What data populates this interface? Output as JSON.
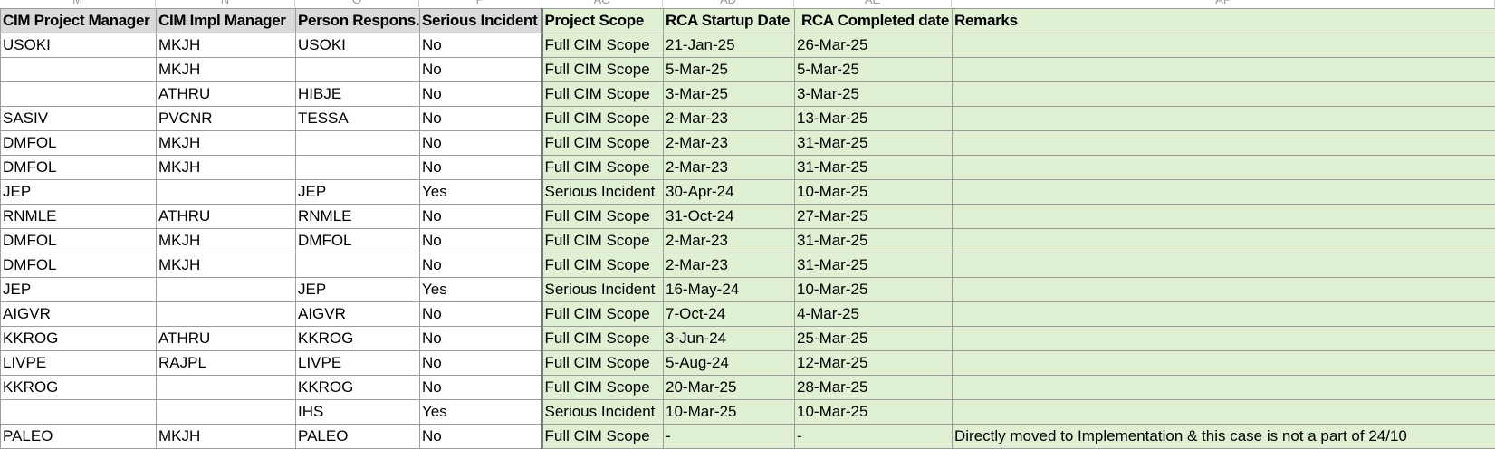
{
  "column_letters": [
    "M",
    "N",
    "O",
    "P",
    "AC",
    "AD",
    "AE",
    "AF"
  ],
  "headers": [
    "CIM Project Manager",
    "CIM Impl Manager",
    "Person Respons.",
    "Serious Incident",
    "Project Scope",
    "RCA Startup Date",
    "RCA Completed date",
    "Remarks"
  ],
  "rows": [
    [
      "USOKI",
      "MKJH",
      "USOKI",
      "No",
      "Full CIM Scope",
      "21-Jan-25",
      "26-Mar-25",
      ""
    ],
    [
      "",
      "MKJH",
      "",
      "No",
      "Full CIM Scope",
      "5-Mar-25",
      "5-Mar-25",
      ""
    ],
    [
      "",
      "ATHRU",
      "HIBJE",
      "No",
      "Full CIM Scope",
      "3-Mar-25",
      "3-Mar-25",
      ""
    ],
    [
      "SASIV",
      "PVCNR",
      "TESSA",
      "No",
      "Full CIM Scope",
      "2-Mar-23",
      "13-Mar-25",
      ""
    ],
    [
      "DMFOL",
      "MKJH",
      "",
      "No",
      "Full CIM Scope",
      "2-Mar-23",
      "31-Mar-25",
      ""
    ],
    [
      "DMFOL",
      "MKJH",
      "",
      "No",
      "Full CIM Scope",
      "2-Mar-23",
      "31-Mar-25",
      ""
    ],
    [
      "JEP",
      "",
      "JEP",
      "Yes",
      "Serious Incident",
      "30-Apr-24",
      "10-Mar-25",
      ""
    ],
    [
      "RNMLE",
      "ATHRU",
      "RNMLE",
      "No",
      "Full CIM Scope",
      "31-Oct-24",
      "27-Mar-25",
      ""
    ],
    [
      "DMFOL",
      "MKJH",
      "DMFOL",
      "No",
      "Full CIM Scope",
      "2-Mar-23",
      "31-Mar-25",
      ""
    ],
    [
      "DMFOL",
      "MKJH",
      "",
      "No",
      "Full CIM Scope",
      "2-Mar-23",
      "31-Mar-25",
      ""
    ],
    [
      "JEP",
      "",
      "JEP",
      "Yes",
      "Serious Incident",
      "16-May-24",
      "10-Mar-25",
      ""
    ],
    [
      "AIGVR",
      "",
      "AIGVR",
      "No",
      "Full CIM Scope",
      "7-Oct-24",
      "4-Mar-25",
      ""
    ],
    [
      "KKROG",
      "ATHRU",
      "KKROG",
      "No",
      "Full CIM Scope",
      "3-Jun-24",
      "25-Mar-25",
      ""
    ],
    [
      "LIVPE",
      "RAJPL",
      "LIVPE",
      "No",
      "Full CIM Scope",
      "5-Aug-24",
      "12-Mar-25",
      ""
    ],
    [
      "KKROG",
      "",
      "KKROG",
      "No",
      "Full CIM Scope",
      "20-Mar-25",
      "28-Mar-25",
      ""
    ],
    [
      "",
      "",
      "IHS",
      "Yes",
      "Serious Incident",
      "10-Mar-25",
      "10-Mar-25",
      ""
    ],
    [
      "PALEO",
      "MKJH",
      "PALEO",
      "No",
      "Full CIM Scope",
      "-",
      "-",
      "Directly moved to Implementation & this case is not a part of 24/10"
    ]
  ]
}
